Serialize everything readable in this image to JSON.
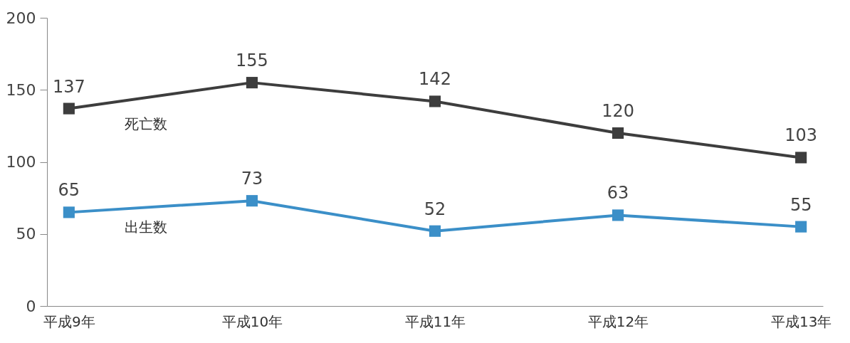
{
  "chart_data": {
    "type": "line",
    "categories": [
      "平成9年",
      "平成10年",
      "平成11年",
      "平成12年",
      "平成13年"
    ],
    "series": [
      {
        "name": "死亡数",
        "color": "#3d3d3d",
        "values": [
          137,
          155,
          142,
          120,
          103
        ]
      },
      {
        "name": "出生数",
        "color": "#3b8fc8",
        "values": [
          65,
          73,
          52,
          63,
          55
        ]
      }
    ],
    "ylim": [
      0,
      200
    ],
    "yticks": [
      0,
      50,
      100,
      150,
      200
    ],
    "grid": false,
    "legend": false,
    "marker": "square",
    "line_style": "solid",
    "data_labels": true
  }
}
